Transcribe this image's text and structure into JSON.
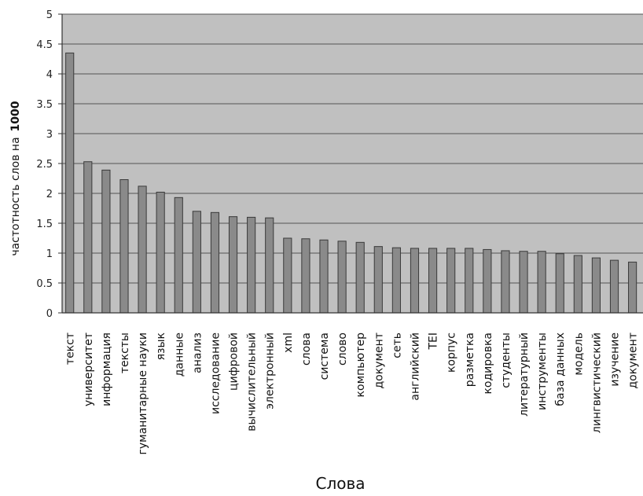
{
  "chart_data": {
    "type": "bar",
    "xlabel": "Слова",
    "ylabel": "частотность слов на",
    "ylabel_unit": "1000",
    "ylim": [
      0,
      5
    ],
    "yticks": [
      "0",
      "0.5",
      "1",
      "1.5",
      "2",
      "2.5",
      "3",
      "3.5",
      "4",
      "4.5",
      "5"
    ],
    "grid": true,
    "colors": {
      "plot_bg": "#c0c0c0",
      "bar": "#8a8a8a",
      "bar_edge": "#3a3a3a",
      "grid": "#555555"
    },
    "categories": [
      "текст",
      "университет",
      "информация",
      "тексты",
      "гуманитарные науки",
      "язык",
      "данные",
      "анализ",
      "исследование",
      "цифровой",
      "вычислительный",
      "электронный",
      "xml",
      "слова",
      "система",
      "слово",
      "компьютер",
      "документ",
      "сеть",
      "английский",
      "TEI",
      "корпус",
      "разметка",
      "кодировка",
      "студенты",
      "литературный",
      "инструменты",
      "база данных",
      "модель",
      "лингвистический",
      "изучение",
      "документ"
    ],
    "values": [
      4.35,
      2.53,
      2.39,
      2.23,
      2.12,
      2.02,
      1.93,
      1.7,
      1.68,
      1.61,
      1.6,
      1.59,
      1.25,
      1.24,
      1.22,
      1.2,
      1.18,
      1.11,
      1.09,
      1.08,
      1.08,
      1.08,
      1.08,
      1.06,
      1.04,
      1.03,
      1.03,
      0.99,
      0.96,
      0.92,
      0.88,
      0.85
    ]
  }
}
